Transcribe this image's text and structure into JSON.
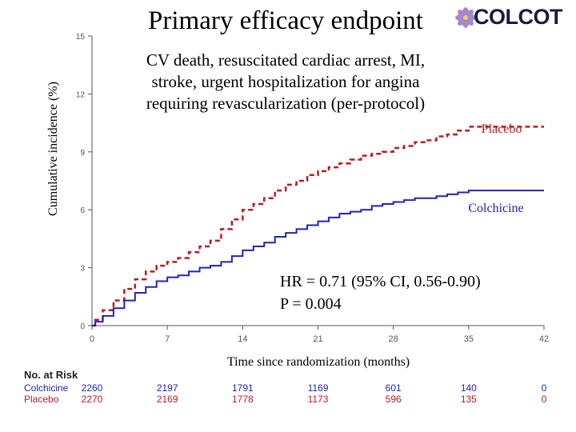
{
  "title": "Primary efficacy endpoint",
  "logo": {
    "text": "COLCOT"
  },
  "subtitle_lines": [
    "CV death, resuscitated cardiac arrest, MI,",
    "stroke, urgent hospitalization for angina",
    "requiring revascularization (per-protocol)"
  ],
  "stats": {
    "hr": "HR = 0.71 (95% CI, 0.56-0.90)",
    "p": "P = 0.004"
  },
  "colors": {
    "placebo": "#b81c22",
    "colchicine": "#2222bb",
    "axis": "#555555",
    "title": "#000000"
  },
  "chart_data": {
    "type": "line",
    "title": "Primary efficacy endpoint",
    "xlabel": "Time since randomization (months)",
    "ylabel": "Cumulative incidence (%)",
    "xlim": [
      0,
      42
    ],
    "ylim": [
      0,
      15
    ],
    "xticks": [
      "0",
      "7",
      "14",
      "21",
      "28",
      "35",
      "42"
    ],
    "yticks": [
      "0",
      "3",
      "6",
      "9",
      "12",
      "15"
    ],
    "series": [
      {
        "name": "Placebo",
        "style": "dashed",
        "points": [
          [
            0,
            0
          ],
          [
            0.3,
            0.3
          ],
          [
            1,
            0.8
          ],
          [
            2,
            1.3
          ],
          [
            3,
            1.9
          ],
          [
            4,
            2.4
          ],
          [
            5,
            2.8
          ],
          [
            6,
            3.1
          ],
          [
            7,
            3.3
          ],
          [
            8,
            3.5
          ],
          [
            9,
            3.8
          ],
          [
            10,
            4.1
          ],
          [
            11,
            4.4
          ],
          [
            12,
            5.0
          ],
          [
            13,
            5.5
          ],
          [
            14,
            6.0
          ],
          [
            15,
            6.3
          ],
          [
            16,
            6.6
          ],
          [
            17,
            7.0
          ],
          [
            18,
            7.3
          ],
          [
            19,
            7.5
          ],
          [
            20,
            7.8
          ],
          [
            21,
            8.0
          ],
          [
            22,
            8.2
          ],
          [
            23,
            8.4
          ],
          [
            24,
            8.6
          ],
          [
            25,
            8.8
          ],
          [
            26,
            8.9
          ],
          [
            27,
            9.0
          ],
          [
            28,
            9.2
          ],
          [
            29,
            9.3
          ],
          [
            30,
            9.5
          ],
          [
            31,
            9.6
          ],
          [
            32,
            9.8
          ],
          [
            33,
            9.9
          ],
          [
            34,
            10.1
          ],
          [
            35,
            10.3
          ],
          [
            42,
            10.3
          ]
        ]
      },
      {
        "name": "Colchicine",
        "style": "solid",
        "points": [
          [
            0,
            0
          ],
          [
            0.3,
            0.2
          ],
          [
            1,
            0.5
          ],
          [
            2,
            0.9
          ],
          [
            3,
            1.3
          ],
          [
            4,
            1.7
          ],
          [
            5,
            2.0
          ],
          [
            6,
            2.3
          ],
          [
            7,
            2.5
          ],
          [
            8,
            2.6
          ],
          [
            9,
            2.8
          ],
          [
            10,
            3.0
          ],
          [
            11,
            3.1
          ],
          [
            12,
            3.3
          ],
          [
            13,
            3.6
          ],
          [
            14,
            3.9
          ],
          [
            15,
            4.1
          ],
          [
            16,
            4.3
          ],
          [
            17,
            4.6
          ],
          [
            18,
            4.8
          ],
          [
            19,
            5.0
          ],
          [
            20,
            5.2
          ],
          [
            21,
            5.4
          ],
          [
            22,
            5.6
          ],
          [
            23,
            5.8
          ],
          [
            24,
            5.9
          ],
          [
            25,
            6.0
          ],
          [
            26,
            6.2
          ],
          [
            27,
            6.3
          ],
          [
            28,
            6.4
          ],
          [
            29,
            6.5
          ],
          [
            30,
            6.6
          ],
          [
            31,
            6.6
          ],
          [
            32,
            6.7
          ],
          [
            33,
            6.8
          ],
          [
            34,
            6.9
          ],
          [
            35,
            7.0
          ],
          [
            42,
            7.0
          ]
        ]
      }
    ],
    "annotations": [
      "Placebo",
      "Colchicine"
    ],
    "grid": false,
    "legend": "direct labels"
  },
  "risk_table": {
    "header": "No. at Risk",
    "rows": [
      {
        "label": "Colchicine",
        "values": [
          "2260",
          "2197",
          "1791",
          "1169",
          "601",
          "140",
          "0"
        ]
      },
      {
        "label": "Placebo",
        "values": [
          "2270",
          "2169",
          "1778",
          "1173",
          "596",
          "135",
          "0"
        ]
      }
    ]
  }
}
